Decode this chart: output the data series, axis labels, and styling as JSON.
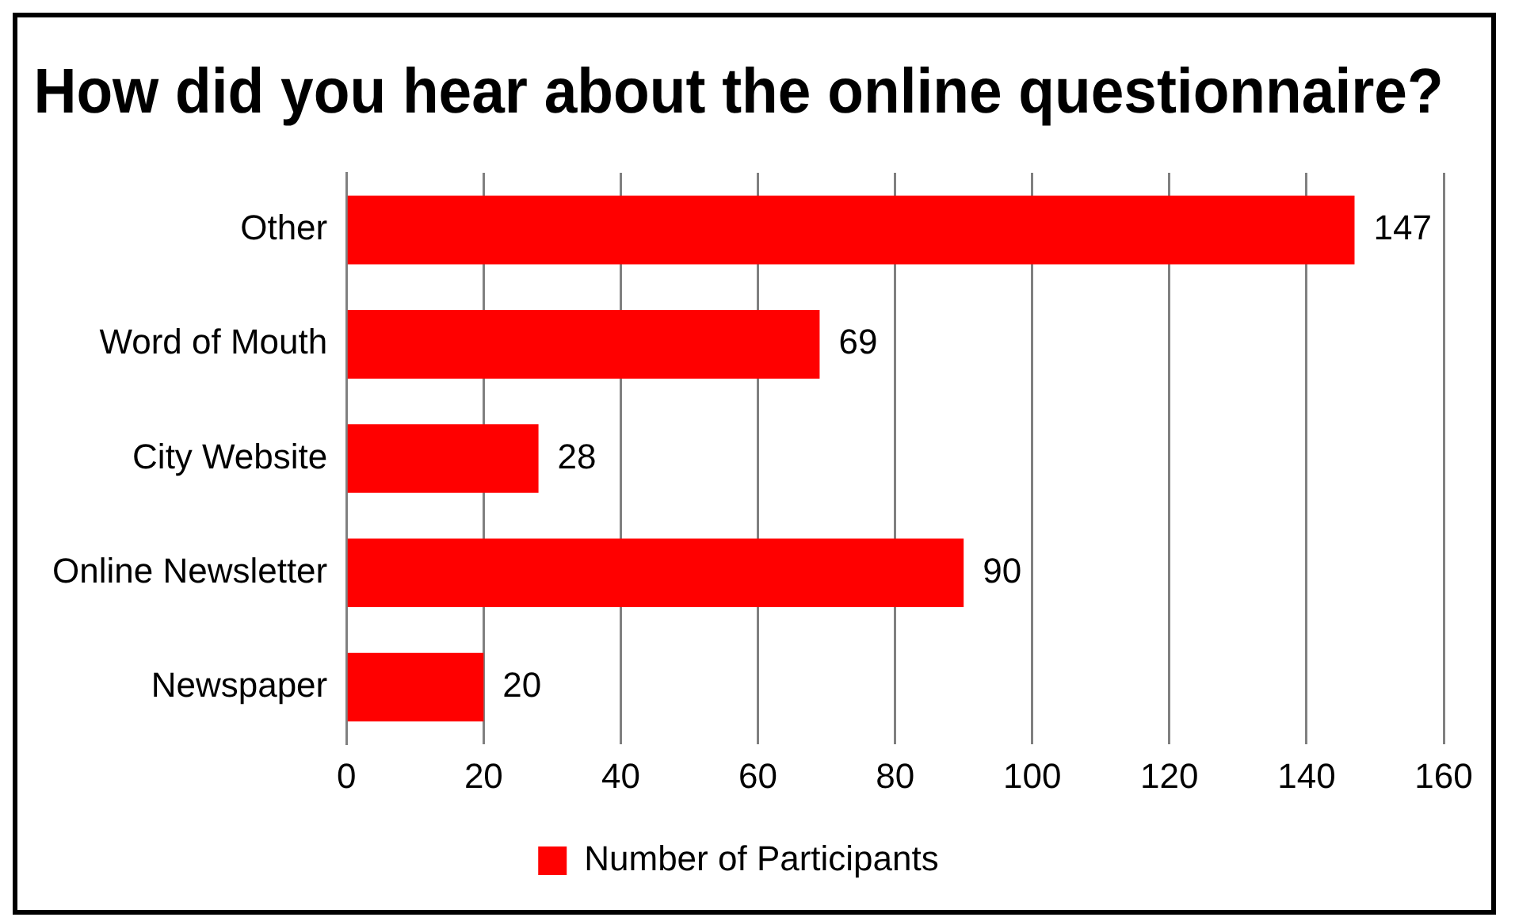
{
  "chart_data": {
    "type": "bar",
    "orientation": "horizontal",
    "title": "How did you hear about the online questionnaire?",
    "categories": [
      "Other",
      "Word of Mouth",
      "City Website",
      "Online Newsletter",
      "Newspaper"
    ],
    "series": [
      {
        "name": "Number of Participants",
        "color": "#ff0000",
        "values": [
          147,
          69,
          28,
          90,
          20
        ]
      }
    ],
    "xlim": [
      0,
      160
    ],
    "xticks": [
      0,
      20,
      40,
      60,
      80,
      100,
      120,
      140,
      160
    ],
    "grid": "x",
    "legend": "bottom",
    "data_labels": true
  }
}
